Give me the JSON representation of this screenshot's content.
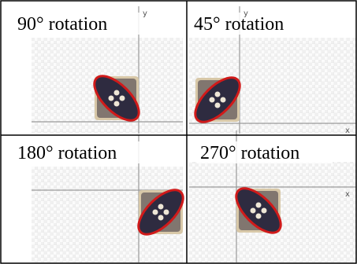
{
  "cells": [
    {
      "label": "90° rotation",
      "axis_y": "y"
    },
    {
      "label": "45° rotation",
      "axis_y": "y",
      "axis_x": "x"
    },
    {
      "label": "180° rotation"
    },
    {
      "label": "270° rotation",
      "axis_x": "x"
    }
  ]
}
